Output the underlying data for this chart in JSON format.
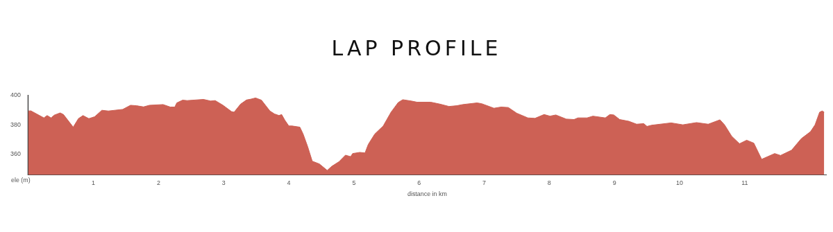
{
  "chart_data": {
    "type": "area",
    "title": "LAP PROFILE",
    "xlabel": "distance in km",
    "ylabel": "ele (m)",
    "color": "#cd6155",
    "x": [
      0,
      0.04,
      0.24,
      0.29,
      0.35,
      0.4,
      0.49,
      0.54,
      0.69,
      0.77,
      0.84,
      0.93,
      1.02,
      1.13,
      1.23,
      1.45,
      1.57,
      1.66,
      1.77,
      1.86,
      2.07,
      2.18,
      2.25,
      2.28,
      2.37,
      2.44,
      2.69,
      2.8,
      2.87,
      2.99,
      3.12,
      3.16,
      3.26,
      3.35,
      3.42,
      3.49,
      3.58,
      3.71,
      3.78,
      3.85,
      3.89,
      3.94,
      4.0,
      4.05,
      4.17,
      4.22,
      4.29,
      4.36,
      4.47,
      4.59,
      4.66,
      4.77,
      4.87,
      4.95,
      4.98,
      5.09,
      5.17,
      5.22,
      5.32,
      5.45,
      5.57,
      5.68,
      5.75,
      5.88,
      5.97,
      6.18,
      6.32,
      6.46,
      6.58,
      6.67,
      6.89,
      6.96,
      7.15,
      7.26,
      7.37,
      7.5,
      7.67,
      7.78,
      7.92,
      8.01,
      8.1,
      8.26,
      8.38,
      8.44,
      8.58,
      8.67,
      8.86,
      8.93,
      8.99,
      9.08,
      9.22,
      9.34,
      9.45,
      9.5,
      9.57,
      9.87,
      10.05,
      10.26,
      10.44,
      10.62,
      10.69,
      10.8,
      10.92,
      11.03,
      11.14,
      11.26,
      11.46,
      11.55,
      11.72,
      11.87,
      12.01,
      12.08,
      12.15,
      12.19,
      12.22
    ],
    "values": [
      389.5,
      389.6,
      384.8,
      386.4,
      384.8,
      386.7,
      388.2,
      387.1,
      378.5,
      384.3,
      386.4,
      384.3,
      385.6,
      390,
      389.5,
      390.6,
      393.4,
      393.1,
      392.3,
      393.4,
      393.9,
      392.2,
      392.2,
      395,
      396.9,
      396.6,
      397.4,
      396.3,
      396.6,
      393.4,
      389.1,
      388.7,
      394.2,
      397,
      397.6,
      398.4,
      396.9,
      389.5,
      387.5,
      386.4,
      387.1,
      383.2,
      379.3,
      379.3,
      378.5,
      373.8,
      365.2,
      355.3,
      353.4,
      349,
      351.8,
      354.9,
      359.4,
      358.4,
      360.5,
      361.3,
      360.9,
      366.7,
      373.8,
      379.3,
      388.7,
      395.3,
      397.2,
      396.3,
      395.5,
      395.5,
      394.2,
      392.6,
      393.1,
      393.9,
      395,
      394.5,
      391.4,
      392.2,
      391.9,
      388,
      384.8,
      384.5,
      387.1,
      386,
      386.8,
      384,
      383.7,
      384.8,
      384.8,
      386,
      384.8,
      387.1,
      386.8,
      383.7,
      382.5,
      380.5,
      380.9,
      379,
      379.8,
      381.4,
      380.1,
      381.6,
      380.5,
      383.5,
      380.1,
      372.3,
      367.2,
      369.6,
      367.6,
      356.6,
      360.5,
      359.2,
      362.8,
      370.7,
      375.4,
      380.1,
      388.7,
      389.5,
      388.7
    ],
    "xlim": [
      0,
      12.25
    ],
    "xticks": [
      1,
      2,
      3,
      4,
      5,
      6,
      7,
      8,
      9,
      10,
      11
    ],
    "ylim": [
      346,
      400
    ],
    "yticks": [
      360,
      380,
      400
    ],
    "grid": false,
    "legend": false
  }
}
